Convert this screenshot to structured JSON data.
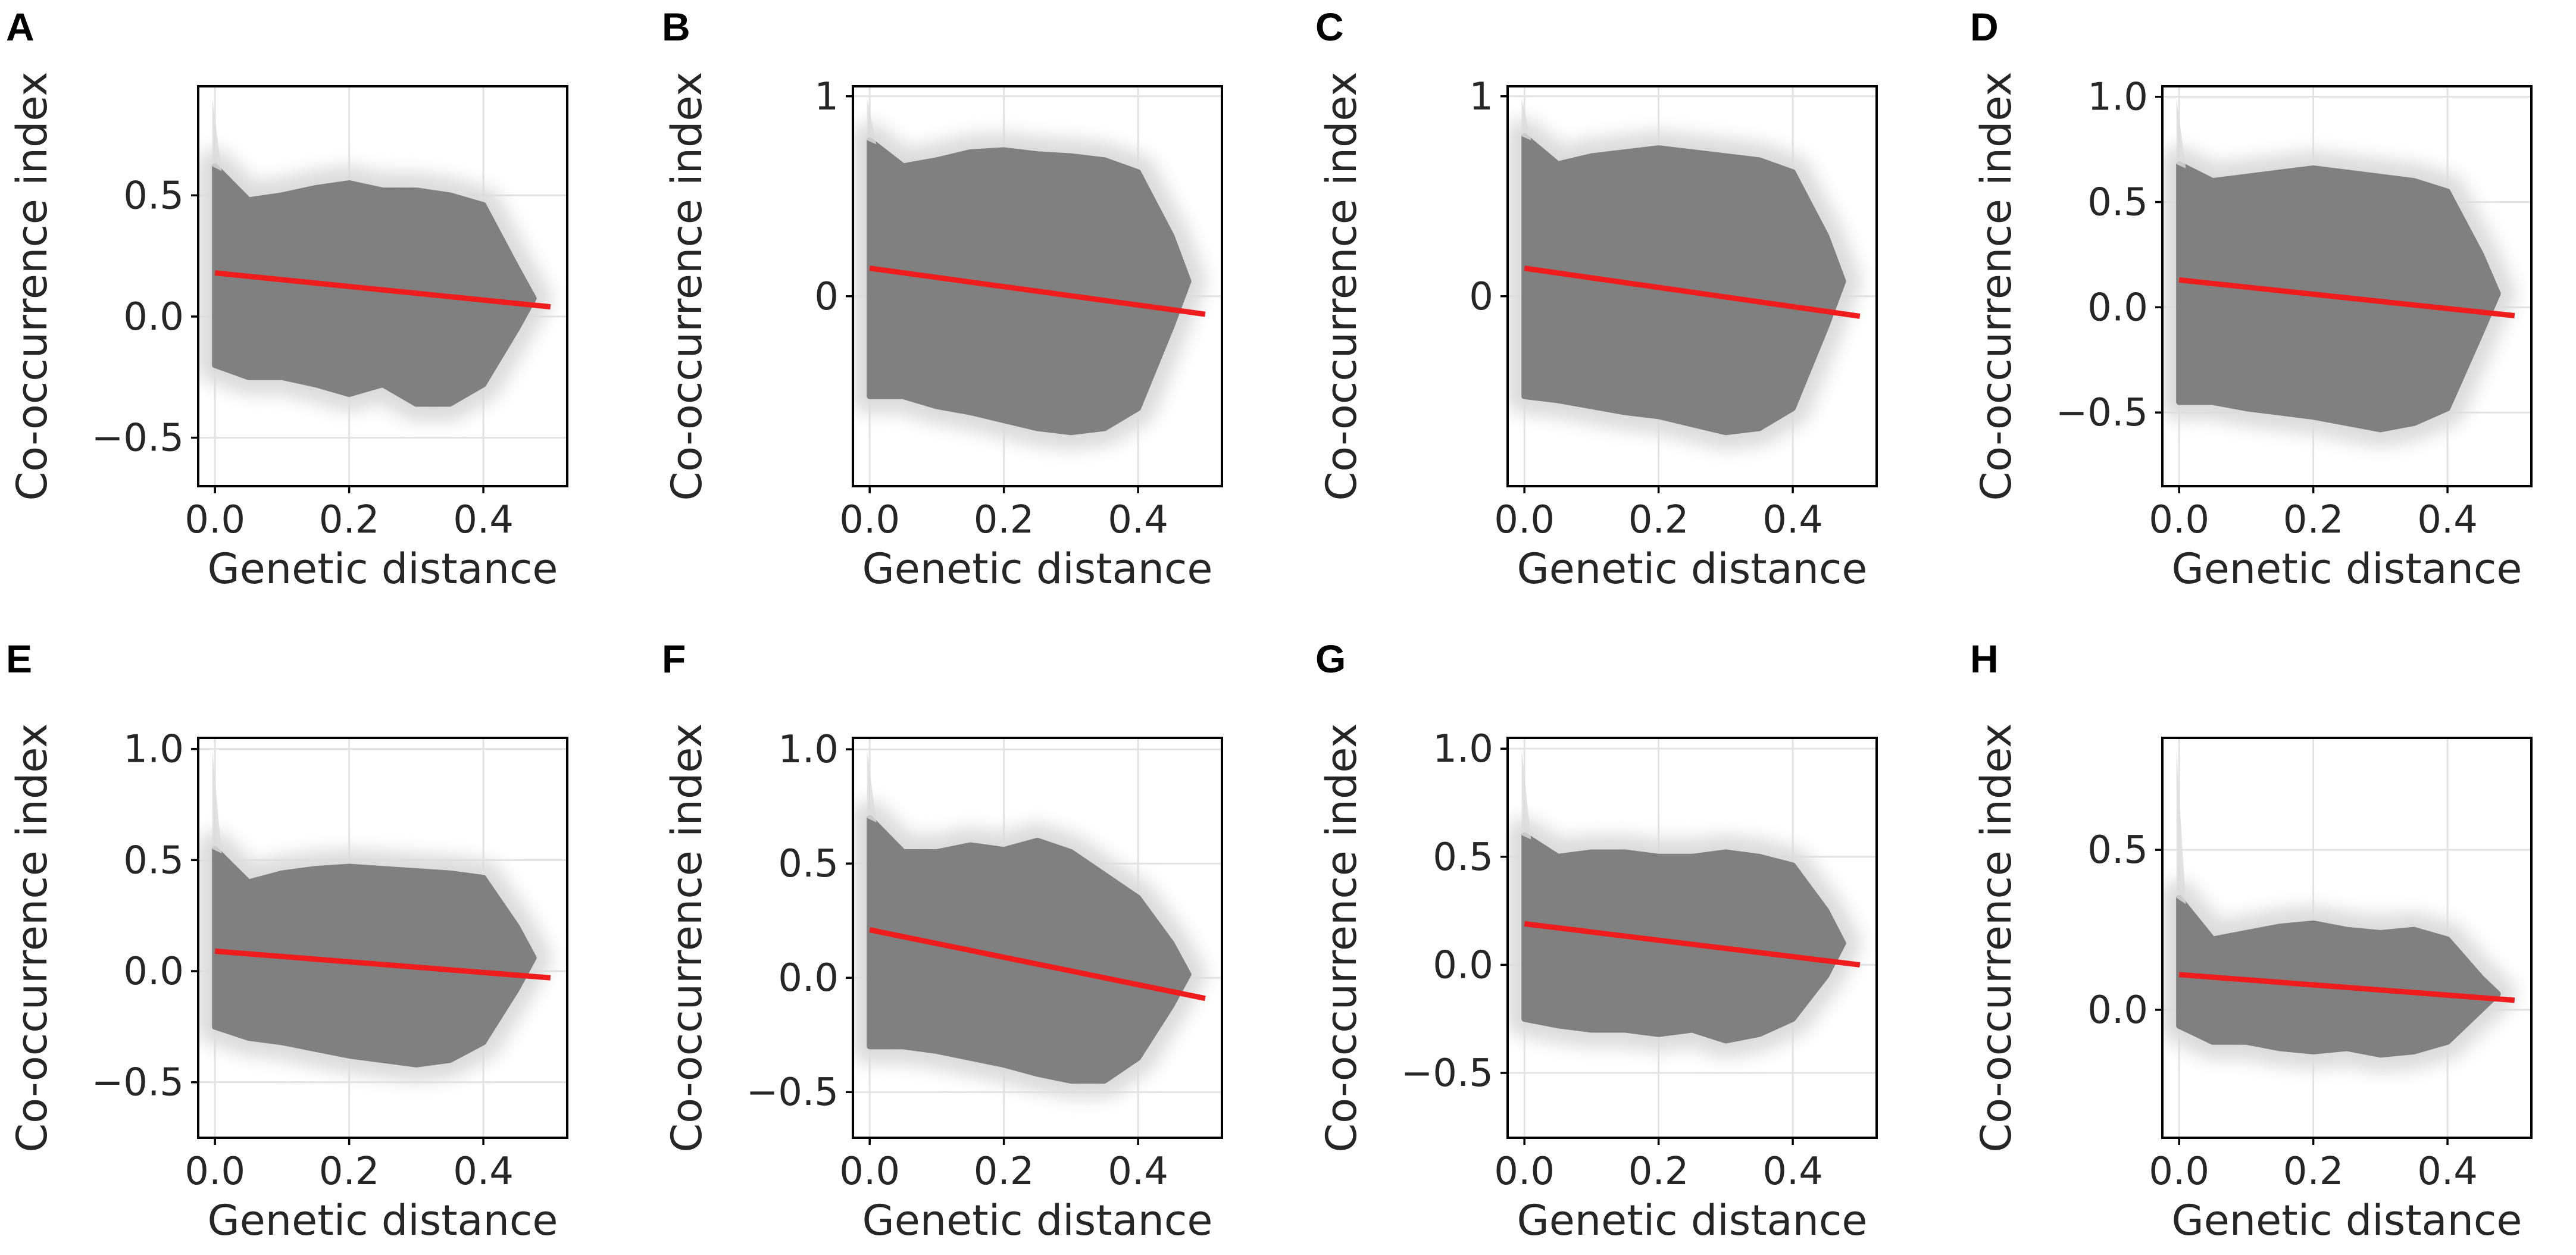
{
  "colors": {
    "cloud": "#808080",
    "halo": "#dcdcdc",
    "fit": "#ee1c1c"
  },
  "chart_data": [
    {
      "panel": "A",
      "type": "scatter",
      "xlabel": "Genetic distance",
      "ylabel": "Co-occurrence index",
      "xlim": [
        -0.025,
        0.525
      ],
      "ylim": [
        -0.7,
        0.95
      ],
      "xticks": [
        0.0,
        0.2,
        0.4
      ],
      "xtick_labels": [
        "0.0",
        "0.2",
        "0.4"
      ],
      "yticks": [
        -0.5,
        0.0,
        0.5
      ],
      "ytick_labels": [
        "−0.5",
        "0.0",
        "0.5"
      ],
      "fit_line": {
        "x": [
          0.0,
          0.5
        ],
        "y": [
          0.18,
          0.04
        ]
      },
      "cloud_profile": {
        "x": [
          0.0,
          0.05,
          0.1,
          0.15,
          0.2,
          0.25,
          0.3,
          0.35,
          0.4,
          0.45
        ],
        "top": [
          0.62,
          0.48,
          0.5,
          0.53,
          0.55,
          0.52,
          0.52,
          0.5,
          0.46,
          0.2
        ],
        "bottom": [
          -0.2,
          -0.25,
          -0.25,
          -0.28,
          -0.32,
          -0.28,
          -0.36,
          -0.36,
          -0.28,
          -0.05
        ]
      }
    },
    {
      "panel": "B",
      "type": "scatter",
      "xlabel": "Genetic distance",
      "ylabel": "Co-occurrence index",
      "xlim": [
        -0.025,
        0.525
      ],
      "ylim": [
        -0.95,
        1.05
      ],
      "xticks": [
        0.0,
        0.2,
        0.4
      ],
      "xtick_labels": [
        "0.0",
        "0.2",
        "0.4"
      ],
      "yticks": [
        0,
        1
      ],
      "ytick_labels": [
        "0",
        "1"
      ],
      "fit_line": {
        "x": [
          0.0,
          0.5
        ],
        "y": [
          0.14,
          -0.09
        ]
      },
      "cloud_profile": {
        "x": [
          0.0,
          0.05,
          0.1,
          0.15,
          0.2,
          0.25,
          0.3,
          0.35,
          0.4,
          0.45
        ],
        "top": [
          0.78,
          0.65,
          0.68,
          0.72,
          0.73,
          0.71,
          0.7,
          0.68,
          0.62,
          0.3
        ],
        "bottom": [
          -0.5,
          -0.5,
          -0.55,
          -0.58,
          -0.62,
          -0.66,
          -0.68,
          -0.66,
          -0.56,
          -0.15
        ]
      }
    },
    {
      "panel": "C",
      "type": "scatter",
      "xlabel": "Genetic distance",
      "ylabel": "Co-occurrence index",
      "xlim": [
        -0.025,
        0.525
      ],
      "ylim": [
        -0.95,
        1.05
      ],
      "xticks": [
        0.0,
        0.2,
        0.4
      ],
      "xtick_labels": [
        "0.0",
        "0.2",
        "0.4"
      ],
      "yticks": [
        0,
        1
      ],
      "ytick_labels": [
        "0",
        "1"
      ],
      "fit_line": {
        "x": [
          0.0,
          0.5
        ],
        "y": [
          0.14,
          -0.1
        ]
      },
      "cloud_profile": {
        "x": [
          0.0,
          0.05,
          0.1,
          0.15,
          0.2,
          0.25,
          0.3,
          0.35,
          0.4,
          0.45
        ],
        "top": [
          0.8,
          0.66,
          0.7,
          0.72,
          0.74,
          0.72,
          0.7,
          0.68,
          0.62,
          0.3
        ],
        "bottom": [
          -0.5,
          -0.52,
          -0.55,
          -0.58,
          -0.6,
          -0.64,
          -0.68,
          -0.66,
          -0.56,
          -0.15
        ]
      }
    },
    {
      "panel": "D",
      "type": "scatter",
      "xlabel": "Genetic distance",
      "ylabel": "Co-occurrence index",
      "xlim": [
        -0.025,
        0.525
      ],
      "ylim": [
        -0.85,
        1.05
      ],
      "xticks": [
        0.0,
        0.2,
        0.4
      ],
      "xtick_labels": [
        "0.0",
        "0.2",
        "0.4"
      ],
      "yticks": [
        -0.5,
        0.0,
        0.5,
        1.0
      ],
      "ytick_labels": [
        "−0.5",
        "0.0",
        "0.5",
        "1.0"
      ],
      "fit_line": {
        "x": [
          0.0,
          0.5
        ],
        "y": [
          0.13,
          -0.04
        ]
      },
      "cloud_profile": {
        "x": [
          0.0,
          0.05,
          0.1,
          0.15,
          0.2,
          0.25,
          0.3,
          0.35,
          0.4,
          0.45
        ],
        "top": [
          0.68,
          0.6,
          0.62,
          0.64,
          0.66,
          0.64,
          0.62,
          0.6,
          0.55,
          0.25
        ],
        "bottom": [
          -0.45,
          -0.45,
          -0.48,
          -0.5,
          -0.52,
          -0.55,
          -0.58,
          -0.55,
          -0.48,
          -0.12
        ]
      }
    },
    {
      "panel": "E",
      "type": "scatter",
      "xlabel": "Genetic distance",
      "ylabel": "Co-occurrence index",
      "xlim": [
        -0.025,
        0.525
      ],
      "ylim": [
        -0.75,
        1.05
      ],
      "xticks": [
        0.0,
        0.2,
        0.4
      ],
      "xtick_labels": [
        "0.0",
        "0.2",
        "0.4"
      ],
      "yticks": [
        -0.5,
        0.0,
        0.5,
        1.0
      ],
      "ytick_labels": [
        "−0.5",
        "0.0",
        "0.5",
        "1.0"
      ],
      "fit_line": {
        "x": [
          0.0,
          0.5
        ],
        "y": [
          0.09,
          -0.03
        ]
      },
      "cloud_profile": {
        "x": [
          0.0,
          0.05,
          0.1,
          0.15,
          0.2,
          0.25,
          0.3,
          0.35,
          0.4,
          0.45
        ],
        "top": [
          0.55,
          0.4,
          0.44,
          0.46,
          0.47,
          0.46,
          0.45,
          0.44,
          0.42,
          0.2
        ],
        "bottom": [
          -0.25,
          -0.3,
          -0.32,
          -0.35,
          -0.38,
          -0.4,
          -0.42,
          -0.4,
          -0.32,
          -0.08
        ]
      }
    },
    {
      "panel": "F",
      "type": "scatter",
      "xlabel": "Genetic distance",
      "ylabel": "Co-occurrence index",
      "xlim": [
        -0.025,
        0.525
      ],
      "ylim": [
        -0.7,
        1.05
      ],
      "xticks": [
        0.0,
        0.2,
        0.4
      ],
      "xtick_labels": [
        "0.0",
        "0.2",
        "0.4"
      ],
      "yticks": [
        -0.5,
        0.0,
        0.5,
        1.0
      ],
      "ytick_labels": [
        "−0.5",
        "0.0",
        "0.5",
        "1.0"
      ],
      "fit_line": {
        "x": [
          0.0,
          0.5
        ],
        "y": [
          0.21,
          -0.09
        ]
      },
      "cloud_profile": {
        "x": [
          0.0,
          0.05,
          0.1,
          0.15,
          0.2,
          0.25,
          0.3,
          0.35,
          0.4,
          0.45
        ],
        "top": [
          0.7,
          0.55,
          0.55,
          0.58,
          0.56,
          0.6,
          0.55,
          0.45,
          0.35,
          0.15
        ],
        "bottom": [
          -0.3,
          -0.3,
          -0.32,
          -0.35,
          -0.38,
          -0.42,
          -0.45,
          -0.45,
          -0.35,
          -0.12
        ]
      }
    },
    {
      "panel": "G",
      "type": "scatter",
      "xlabel": "Genetic distance",
      "ylabel": "Co-occurrence index",
      "xlim": [
        -0.025,
        0.525
      ],
      "ylim": [
        -0.8,
        1.05
      ],
      "xticks": [
        0.0,
        0.2,
        0.4
      ],
      "xtick_labels": [
        "0.0",
        "0.2",
        "0.4"
      ],
      "yticks": [
        -0.5,
        0.0,
        0.5,
        1.0
      ],
      "ytick_labels": [
        "−0.5",
        "0.0",
        "0.5",
        "1.0"
      ],
      "fit_line": {
        "x": [
          0.0,
          0.5
        ],
        "y": [
          0.19,
          0.0
        ]
      },
      "cloud_profile": {
        "x": [
          0.0,
          0.05,
          0.1,
          0.15,
          0.2,
          0.25,
          0.3,
          0.35,
          0.4,
          0.45
        ],
        "top": [
          0.6,
          0.5,
          0.52,
          0.52,
          0.5,
          0.5,
          0.52,
          0.5,
          0.46,
          0.25
        ],
        "bottom": [
          -0.25,
          -0.28,
          -0.3,
          -0.3,
          -0.32,
          -0.3,
          -0.35,
          -0.32,
          -0.25,
          -0.05
        ]
      }
    },
    {
      "panel": "H",
      "type": "scatter",
      "xlabel": "Genetic distance",
      "ylabel": "Co-occurrence index",
      "xlim": [
        -0.025,
        0.525
      ],
      "ylim": [
        -0.4,
        0.85
      ],
      "xticks": [
        0.0,
        0.2,
        0.4
      ],
      "xtick_labels": [
        "0.0",
        "0.2",
        "0.4"
      ],
      "yticks": [
        0.0,
        0.5
      ],
      "ytick_labels": [
        "0.0",
        "0.5"
      ],
      "fit_line": {
        "x": [
          0.0,
          0.5
        ],
        "y": [
          0.11,
          0.03
        ]
      },
      "cloud_profile": {
        "x": [
          0.0,
          0.05,
          0.1,
          0.15,
          0.2,
          0.25,
          0.3,
          0.35,
          0.4,
          0.45
        ],
        "top": [
          0.35,
          0.22,
          0.24,
          0.26,
          0.27,
          0.25,
          0.24,
          0.25,
          0.22,
          0.1
        ],
        "bottom": [
          -0.05,
          -0.1,
          -0.1,
          -0.12,
          -0.13,
          -0.12,
          -0.14,
          -0.13,
          -0.1,
          0.0
        ]
      }
    }
  ]
}
